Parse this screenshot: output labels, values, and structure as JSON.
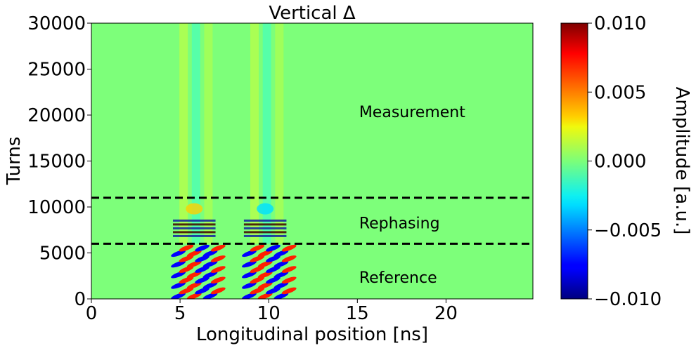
{
  "chart_data": {
    "type": "heatmap",
    "title": "Vertical Δ",
    "xlabel": "Longitudinal position [ns]",
    "ylabel": "Turns",
    "xlim": [
      0,
      24.9
    ],
    "ylim": [
      0,
      30000
    ],
    "x_ticks": [
      0,
      5,
      10,
      15,
      20
    ],
    "x_tick_labels": [
      "0",
      "5",
      "10",
      "15",
      "20"
    ],
    "y_ticks": [
      0,
      5000,
      10000,
      15000,
      20000,
      25000,
      30000
    ],
    "y_tick_labels": [
      "0",
      "5000",
      "10000",
      "15000",
      "20000",
      "25000",
      "30000"
    ],
    "colormap": "jet",
    "colorbar": {
      "label": "Amplitude [a.u.]",
      "range": [
        -0.01,
        0.01
      ],
      "ticks": [
        0.01,
        0.005,
        0.0,
        -0.005,
        -0.01
      ],
      "tick_labels": [
        "0.010",
        "0.005",
        "0.000",
        "−0.005",
        "−0.010"
      ]
    },
    "bunches_ns": [
      5.8,
      9.8
    ],
    "dashed_lines_turns": [
      6000,
      11000
    ],
    "regions": [
      {
        "label": "Measurement",
        "x": 15.1,
        "y": 20300
      },
      {
        "label": "Rephasing",
        "x": 15.1,
        "y": 8200
      },
      {
        "label": "Reference",
        "x": 15.1,
        "y": 2300
      }
    ]
  }
}
